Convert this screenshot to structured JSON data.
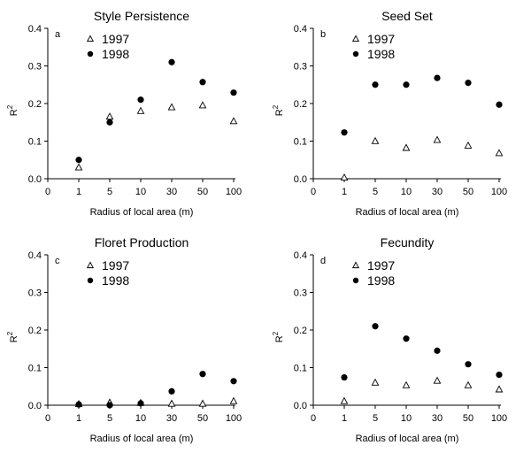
{
  "chart_data": [
    {
      "type": "scatter",
      "panel_letter": "a",
      "title": "Style Persistence",
      "xlabel": "Radius of local area (m)",
      "ylabel": "R2",
      "x_tick_labels": [
        "0",
        "1",
        "5",
        "10",
        "30",
        "50",
        "100"
      ],
      "x_categories": [
        "1",
        "5",
        "10",
        "30",
        "50",
        "100"
      ],
      "y_ticks": [
        "0.0",
        "0.1",
        "0.2",
        "0.3",
        "0.4"
      ],
      "ylim": [
        0,
        0.4
      ],
      "legend_position": "top-left",
      "series": [
        {
          "name": "1997",
          "marker": "open-triangle",
          "values": [
            0.03,
            0.165,
            0.18,
            0.19,
            0.195,
            0.153
          ]
        },
        {
          "name": "1998",
          "marker": "filled-circle",
          "values": [
            0.05,
            0.15,
            0.21,
            0.31,
            0.257,
            0.229
          ]
        }
      ]
    },
    {
      "type": "scatter",
      "panel_letter": "b",
      "title": "Seed Set",
      "xlabel": "Radius of local area (m)",
      "ylabel": "R2",
      "x_tick_labels": [
        "0",
        "1",
        "5",
        "10",
        "30",
        "50",
        "100"
      ],
      "x_categories": [
        "1",
        "5",
        "10",
        "30",
        "50",
        "100"
      ],
      "y_ticks": [
        "0.0",
        "0.1",
        "0.2",
        "0.3",
        "0.4"
      ],
      "ylim": [
        0,
        0.4
      ],
      "legend_position": "top-left",
      "series": [
        {
          "name": "1997",
          "marker": "open-triangle",
          "values": [
            0.003,
            0.1,
            0.082,
            0.103,
            0.088,
            0.068
          ]
        },
        {
          "name": "1998",
          "marker": "filled-circle",
          "values": [
            0.123,
            0.25,
            0.25,
            0.268,
            0.255,
            0.197
          ]
        }
      ]
    },
    {
      "type": "scatter",
      "panel_letter": "c",
      "title": "Floret Production",
      "xlabel": "Radius of local area (m)",
      "ylabel": "R2",
      "x_tick_labels": [
        "0",
        "1",
        "5",
        "10",
        "30",
        "50",
        "100"
      ],
      "x_categories": [
        "1",
        "5",
        "10",
        "30",
        "50",
        "100"
      ],
      "y_ticks": [
        "0.0",
        "0.1",
        "0.2",
        "0.3",
        "0.4"
      ],
      "ylim": [
        0,
        0.4
      ],
      "legend_position": "top-left",
      "series": [
        {
          "name": "1997",
          "marker": "open-triangle",
          "values": [
            0.003,
            0.007,
            0.006,
            0.004,
            0.004,
            0.011
          ]
        },
        {
          "name": "1998",
          "marker": "filled-circle",
          "values": [
            0.002,
            0.0,
            0.005,
            0.037,
            0.083,
            0.064
          ]
        }
      ]
    },
    {
      "type": "scatter",
      "panel_letter": "d",
      "title": "Fecundity",
      "xlabel": "Radius of local area (m)",
      "ylabel": "R2",
      "x_tick_labels": [
        "0",
        "1",
        "5",
        "10",
        "30",
        "50",
        "100"
      ],
      "x_categories": [
        "1",
        "5",
        "10",
        "30",
        "50",
        "100"
      ],
      "y_ticks": [
        "0.0",
        "0.1",
        "0.2",
        "0.3",
        "0.4"
      ],
      "ylim": [
        0,
        0.4
      ],
      "legend_position": "top-left",
      "series": [
        {
          "name": "1997",
          "marker": "open-triangle",
          "values": [
            0.011,
            0.06,
            0.053,
            0.065,
            0.053,
            0.042
          ]
        },
        {
          "name": "1998",
          "marker": "filled-circle",
          "values": [
            0.074,
            0.21,
            0.177,
            0.145,
            0.109,
            0.081
          ]
        }
      ]
    }
  ]
}
